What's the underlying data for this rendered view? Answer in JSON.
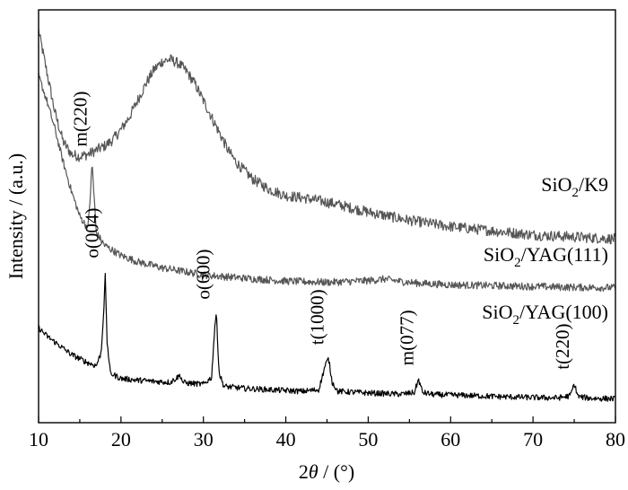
{
  "chart_data": {
    "type": "line",
    "xlabel_prefix": "2",
    "xlabel_symbol": "θ",
    "xlabel_suffix": " / (°)",
    "ylabel": "Intensity / (a.u.)",
    "xlim": [
      10,
      80
    ],
    "ylim": [
      0,
      100
    ],
    "xticks": [
      10,
      20,
      30,
      40,
      50,
      60,
      70,
      80
    ],
    "y_tick_labels_shown": false,
    "series": [
      {
        "name": "SiO2/K9",
        "label_parts": {
          "base": "SiO",
          "sub": "2",
          "rest": "/K9"
        },
        "color": "#555555",
        "x": [
          10,
          11,
          12,
          13,
          14,
          15,
          16,
          17,
          18,
          19,
          20,
          21,
          22,
          23,
          24,
          25,
          26,
          27,
          28,
          29,
          30,
          31,
          32,
          33,
          34,
          36,
          38,
          40,
          42,
          44,
          46,
          48,
          50,
          55,
          60,
          65,
          70,
          75,
          80
        ],
        "values": [
          95,
          85,
          75,
          68,
          65,
          64.5,
          65,
          66,
          67,
          68.5,
          71,
          74,
          78,
          82,
          85.5,
          87.5,
          88,
          87,
          85,
          82,
          78,
          74,
          70,
          66,
          63,
          59,
          56.5,
          55,
          54.5,
          53.8,
          53,
          52,
          51,
          49,
          47.5,
          46.5,
          45.5,
          45,
          44.5
        ]
      },
      {
        "name": "SiO2/YAG(111)",
        "label_parts": {
          "base": "SiO",
          "sub": "2",
          "rest": "/YAG(111)"
        },
        "color": "#555555",
        "x": [
          10,
          11,
          12,
          13,
          14,
          15,
          16,
          16.3,
          16.5,
          16.7,
          17,
          18,
          20,
          22,
          25,
          28,
          30,
          35,
          40,
          45,
          50,
          52,
          54,
          56,
          60,
          65,
          70,
          75,
          80
        ],
        "values": [
          84,
          78,
          71,
          63,
          56,
          50,
          47,
          56,
          63,
          56,
          46,
          43,
          40.5,
          39,
          37.5,
          36.5,
          35.8,
          35,
          34.3,
          34,
          34.4,
          34.8,
          34.2,
          33.8,
          33.4,
          33.2,
          33,
          32.8,
          32.7
        ]
      },
      {
        "name": "SiO2/YAG(100)",
        "label_parts": {
          "base": "SiO",
          "sub": "2",
          "rest": "/YAG(100)"
        },
        "color": "#000000",
        "x": [
          10,
          11,
          12,
          13,
          14,
          15,
          16,
          17,
          17.6,
          17.9,
          18.1,
          18.3,
          18.7,
          20,
          22,
          24,
          26,
          27.2,
          27.5,
          28,
          30,
          31.0,
          31.4,
          31.6,
          31.9,
          32.5,
          35,
          40,
          42,
          44,
          44.8,
          45.2,
          45.6,
          46.3,
          50,
          54,
          55.6,
          56.1,
          56.6,
          58,
          62,
          66,
          70,
          73,
          74.5,
          75.0,
          75.5,
          77,
          80
        ],
        "values": [
          23,
          21,
          19.5,
          18,
          16.5,
          15.5,
          14.5,
          13.8,
          17,
          27,
          36,
          20,
          12,
          10.7,
          10.3,
          10,
          9.8,
          11.5,
          9.8,
          9.6,
          9.3,
          11,
          24,
          26,
          12,
          8.8,
          8.3,
          7.8,
          7.6,
          8,
          14,
          15.5,
          10,
          7.6,
          7.2,
          6.9,
          7.3,
          10.5,
          7.3,
          6.8,
          6.6,
          6.3,
          6.1,
          6.0,
          6.5,
          9.3,
          6.3,
          5.9,
          5.8
        ]
      }
    ],
    "annotations": [
      {
        "text": "m(220)",
        "x": 16.5,
        "y": 66
      },
      {
        "text": "o(004)",
        "x": 17.9,
        "y": 39
      },
      {
        "text": "o(600)",
        "x": 31.4,
        "y": 29
      },
      {
        "text": "t(1000)",
        "x": 45.2,
        "y": 18
      },
      {
        "text": "m(077)",
        "x": 56.1,
        "y": 13
      },
      {
        "text": "t(220)",
        "x": 75.0,
        "y": 12
      }
    ]
  }
}
